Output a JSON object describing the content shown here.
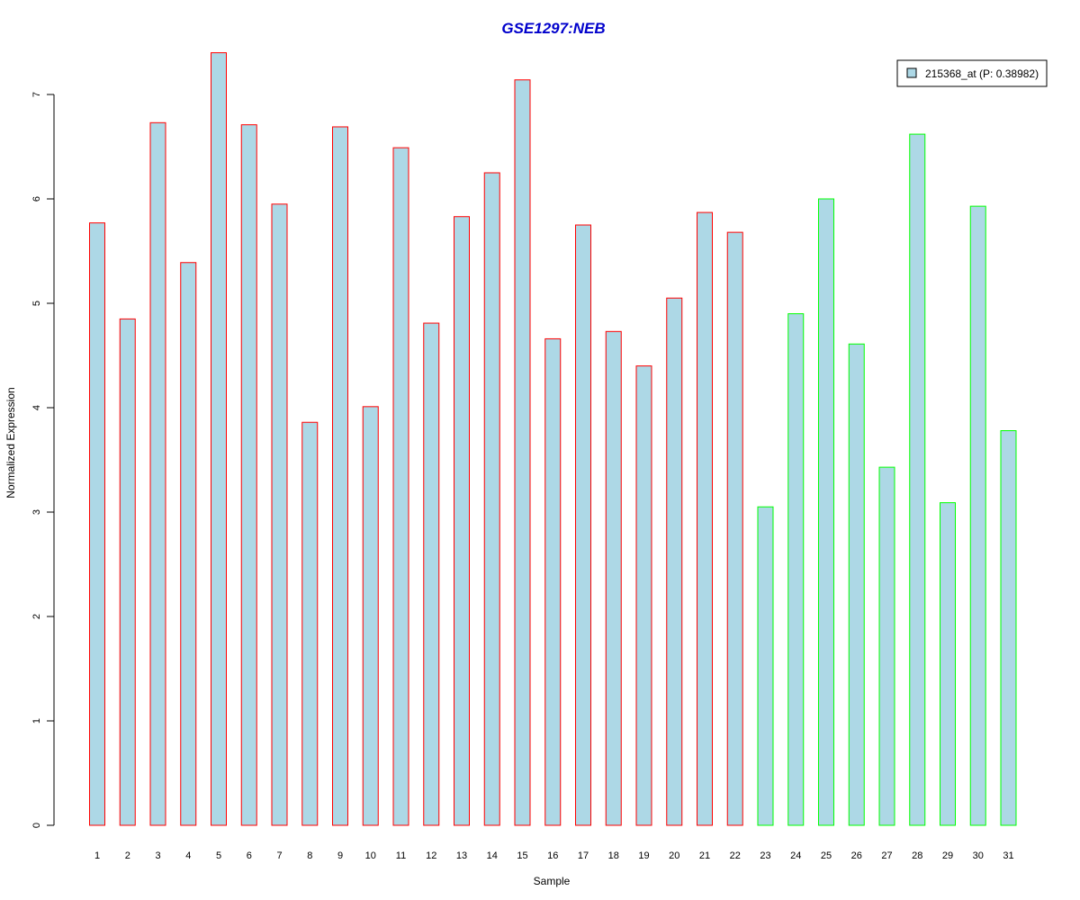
{
  "chart_data": {
    "type": "bar",
    "title": "GSE1297:NEB",
    "xlabel": "Sample",
    "ylabel": "Normalized Expression",
    "categories": [
      "1",
      "2",
      "3",
      "4",
      "5",
      "6",
      "7",
      "8",
      "9",
      "10",
      "11",
      "12",
      "13",
      "14",
      "15",
      "16",
      "17",
      "18",
      "19",
      "20",
      "21",
      "22",
      "23",
      "24",
      "25",
      "26",
      "27",
      "28",
      "29",
      "30",
      "31"
    ],
    "values": [
      5.77,
      4.85,
      6.73,
      5.39,
      7.4,
      6.71,
      5.95,
      3.86,
      6.69,
      4.01,
      6.49,
      4.81,
      5.83,
      6.25,
      7.14,
      4.66,
      5.75,
      4.73,
      4.4,
      5.05,
      5.87,
      5.68,
      3.05,
      4.9,
      6.0,
      4.61,
      3.43,
      6.62,
      3.09,
      5.93,
      3.78
    ],
    "group_colors": [
      "#ff0000",
      "#ff0000",
      "#ff0000",
      "#ff0000",
      "#ff0000",
      "#ff0000",
      "#ff0000",
      "#ff0000",
      "#ff0000",
      "#ff0000",
      "#ff0000",
      "#ff0000",
      "#ff0000",
      "#ff0000",
      "#ff0000",
      "#ff0000",
      "#ff0000",
      "#ff0000",
      "#ff0000",
      "#ff0000",
      "#ff0000",
      "#ff0000",
      "#00ff00",
      "#00ff00",
      "#00ff00",
      "#00ff00",
      "#00ff00",
      "#00ff00",
      "#00ff00",
      "#00ff00",
      "#00ff00"
    ],
    "yticks": [
      "0",
      "1",
      "2",
      "3",
      "4",
      "5",
      "6",
      "7"
    ],
    "ylim": [
      0,
      7.5
    ],
    "bar_fill": "#add8e6",
    "title_color": "#0000cc",
    "legend": {
      "label": "215368_at (P: 0.38982)",
      "position": "top-right"
    },
    "grid": false
  }
}
